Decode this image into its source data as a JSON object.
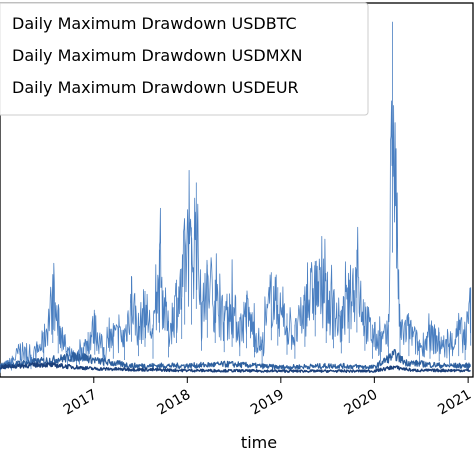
{
  "chart_data": {
    "type": "line",
    "title": "",
    "xlabel": "time",
    "ylabel": "",
    "x_ticks": [
      "2017",
      "2018",
      "2019",
      "2020",
      "2021"
    ],
    "xlim": [
      "2016-01-01",
      "2021-01-20"
    ],
    "ylim": [
      0,
      1.0
    ],
    "grid": false,
    "legend_position": "top-left",
    "series": [
      {
        "name": "Daily Maximum Drawdown USDBTC",
        "color": "#4a7fc1",
        "points": [
          [
            "2016-01-01",
            0.03
          ],
          [
            "2016-02-15",
            0.05
          ],
          [
            "2016-03-20",
            0.09
          ],
          [
            "2016-05-01",
            0.06
          ],
          [
            "2016-06-20",
            0.12
          ],
          [
            "2016-07-25",
            0.26
          ],
          [
            "2016-08-15",
            0.18
          ],
          [
            "2016-09-20",
            0.08
          ],
          [
            "2016-10-25",
            0.06
          ],
          [
            "2016-12-10",
            0.12
          ],
          [
            "2017-01-05",
            0.17
          ],
          [
            "2017-02-10",
            0.08
          ],
          [
            "2017-03-18",
            0.14
          ],
          [
            "2017-05-01",
            0.13
          ],
          [
            "2017-05-28",
            0.27
          ],
          [
            "2017-06-25",
            0.16
          ],
          [
            "2017-07-20",
            0.23
          ],
          [
            "2017-08-20",
            0.14
          ],
          [
            "2017-09-15",
            0.34
          ],
          [
            "2017-10-20",
            0.15
          ],
          [
            "2017-11-20",
            0.26
          ],
          [
            "2017-12-10",
            0.29
          ],
          [
            "2017-12-22",
            0.4
          ],
          [
            "2018-01-17",
            0.4
          ],
          [
            "2018-02-05",
            0.52
          ],
          [
            "2018-02-25",
            0.2
          ],
          [
            "2018-03-20",
            0.3
          ],
          [
            "2018-04-20",
            0.26
          ],
          [
            "2018-05-25",
            0.19
          ],
          [
            "2018-06-25",
            0.23
          ],
          [
            "2018-07-25",
            0.16
          ],
          [
            "2018-08-20",
            0.22
          ],
          [
            "2018-09-20",
            0.15
          ],
          [
            "2018-10-20",
            0.1
          ],
          [
            "2018-11-25",
            0.28
          ],
          [
            "2018-12-20",
            0.24
          ],
          [
            "2019-01-25",
            0.17
          ],
          [
            "2019-02-25",
            0.14
          ],
          [
            "2019-04-05",
            0.23
          ],
          [
            "2019-05-15",
            0.31
          ],
          [
            "2019-06-27",
            0.26
          ],
          [
            "2019-07-25",
            0.22
          ],
          [
            "2019-08-25",
            0.18
          ],
          [
            "2019-09-25",
            0.26
          ],
          [
            "2019-10-25",
            0.34
          ],
          [
            "2019-11-25",
            0.2
          ],
          [
            "2019-12-25",
            0.14
          ],
          [
            "2020-01-25",
            0.12
          ],
          [
            "2020-02-25",
            0.14
          ],
          [
            "2020-03-12",
            0.95
          ],
          [
            "2020-04-10",
            0.15
          ],
          [
            "2020-05-15",
            0.16
          ],
          [
            "2020-06-25",
            0.1
          ],
          [
            "2020-08-05",
            0.14
          ],
          [
            "2020-09-10",
            0.12
          ],
          [
            "2020-10-20",
            0.09
          ],
          [
            "2020-11-25",
            0.16
          ],
          [
            "2020-12-20",
            0.13
          ],
          [
            "2021-01-11",
            0.24
          ]
        ]
      },
      {
        "name": "Daily Maximum Drawdown USDMXN",
        "color": "#2d5f9e",
        "points": [
          [
            "2016-01-01",
            0.035
          ],
          [
            "2016-06-24",
            0.05
          ],
          [
            "2016-11-09",
            0.065
          ],
          [
            "2017-01-15",
            0.05
          ],
          [
            "2017-06-01",
            0.035
          ],
          [
            "2018-01-01",
            0.035
          ],
          [
            "2018-06-15",
            0.04
          ],
          [
            "2019-01-01",
            0.03
          ],
          [
            "2019-08-01",
            0.035
          ],
          [
            "2020-01-01",
            0.03
          ],
          [
            "2020-03-20",
            0.07
          ],
          [
            "2020-05-01",
            0.045
          ],
          [
            "2020-10-01",
            0.035
          ],
          [
            "2021-01-11",
            0.035
          ]
        ]
      },
      {
        "name": "Daily Maximum Drawdown USDEUR",
        "color": "#1a3f7a",
        "points": [
          [
            "2016-01-01",
            0.03
          ],
          [
            "2016-06-24",
            0.038
          ],
          [
            "2017-01-01",
            0.025
          ],
          [
            "2018-01-01",
            0.02
          ],
          [
            "2019-01-01",
            0.018
          ],
          [
            "2020-01-01",
            0.018
          ],
          [
            "2020-03-15",
            0.03
          ],
          [
            "2020-06-01",
            0.02
          ],
          [
            "2021-01-11",
            0.02
          ]
        ]
      }
    ]
  }
}
